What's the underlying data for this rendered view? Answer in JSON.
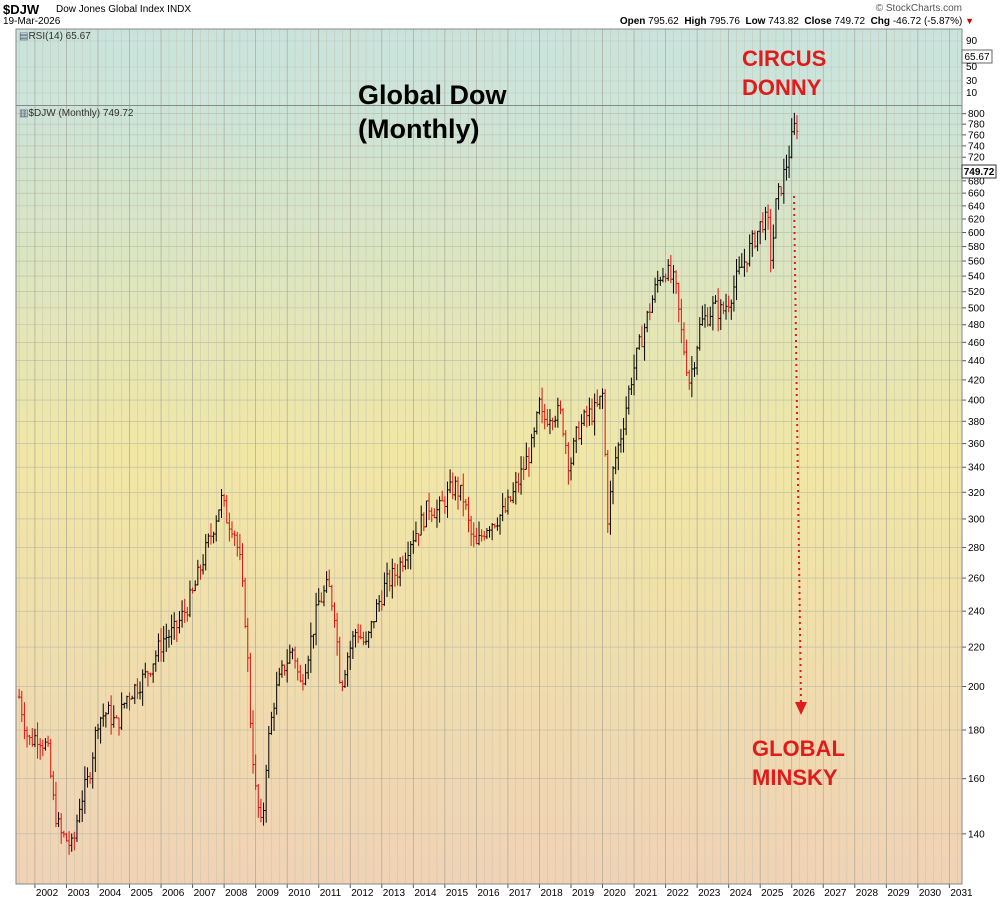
{
  "header": {
    "symbol": "$DJW",
    "name": "Dow Jones Global Index INDX",
    "date": "19-Mar-2026",
    "brand": "© StockCharts.com",
    "open_label": "Open",
    "open": "795.62",
    "high_label": "High",
    "high": "795.76",
    "low_label": "Low",
    "low": "743.82",
    "close_label": "Close",
    "close": "749.72",
    "chg_label": "Chg",
    "chg": "-46.72 (-5.87%)"
  },
  "rsi_panel": {
    "label": "RSI(14) 65.67",
    "value_tag": "65.67",
    "ticks": [
      "90",
      "50",
      "30",
      "10"
    ]
  },
  "price_panel": {
    "label": "$DJW (Monthly) 749.72",
    "value_tag": "749.72"
  },
  "overlays": {
    "title_line1": "Global Dow",
    "title_line2": "(Monthly)",
    "annotation_top_line1": "CIRCUS",
    "annotation_top_line2": "DONNY",
    "annotation_bottom_line1": "GLOBAL",
    "annotation_bottom_line2": "MINSKY"
  },
  "colors": {
    "up": "#000000",
    "down": "#dd1111",
    "annotation": "#e01b1b"
  },
  "chart_data": {
    "type": "line",
    "scale": "log",
    "ylim": [
      124,
      815
    ],
    "xlim": [
      2001.4,
      2031.4
    ],
    "yticks": [
      140,
      160,
      180,
      200,
      220,
      240,
      260,
      280,
      300,
      320,
      340,
      360,
      380,
      400,
      420,
      440,
      460,
      480,
      500,
      520,
      540,
      560,
      580,
      600,
      620,
      640,
      660,
      680,
      700,
      720,
      740,
      760,
      780,
      800
    ],
    "xticks": [
      2002,
      2003,
      2004,
      2005,
      2006,
      2007,
      2008,
      2009,
      2010,
      2011,
      2012,
      2013,
      2014,
      2015,
      2016,
      2017,
      2018,
      2019,
      2020,
      2021,
      2022,
      2023,
      2024,
      2025,
      2026,
      2027,
      2028,
      2029,
      2030,
      2031
    ],
    "series": [
      {
        "points": [
          [
            2001.5,
            195
          ],
          [
            2001.8,
            175
          ],
          [
            2002.1,
            178
          ],
          [
            2002.4,
            172
          ],
          [
            2002.6,
            150
          ],
          [
            2002.8,
            140
          ],
          [
            2003.0,
            138
          ],
          [
            2003.2,
            135
          ],
          [
            2003.4,
            150
          ],
          [
            2003.7,
            160
          ],
          [
            2004.0,
            185
          ],
          [
            2004.3,
            188
          ],
          [
            2004.6,
            182
          ],
          [
            2004.9,
            195
          ],
          [
            2005.2,
            200
          ],
          [
            2005.5,
            205
          ],
          [
            2005.8,
            215
          ],
          [
            2006.1,
            225
          ],
          [
            2006.4,
            228
          ],
          [
            2006.7,
            238
          ],
          [
            2007.0,
            250
          ],
          [
            2007.3,
            270
          ],
          [
            2007.6,
            290
          ],
          [
            2007.9,
            315
          ],
          [
            2008.1,
            300
          ],
          [
            2008.3,
            295
          ],
          [
            2008.5,
            270
          ],
          [
            2008.7,
            230
          ],
          [
            2008.85,
            180
          ],
          [
            2009.0,
            155
          ],
          [
            2009.2,
            140
          ],
          [
            2009.35,
            170
          ],
          [
            2009.6,
            195
          ],
          [
            2009.9,
            210
          ],
          [
            2010.2,
            220
          ],
          [
            2010.4,
            200
          ],
          [
            2010.7,
            220
          ],
          [
            2011.0,
            245
          ],
          [
            2011.3,
            255
          ],
          [
            2011.5,
            240
          ],
          [
            2011.7,
            200
          ],
          [
            2011.9,
            215
          ],
          [
            2012.2,
            230
          ],
          [
            2012.5,
            220
          ],
          [
            2012.8,
            240
          ],
          [
            2013.1,
            255
          ],
          [
            2013.5,
            265
          ],
          [
            2013.9,
            285
          ],
          [
            2014.2,
            295
          ],
          [
            2014.5,
            310
          ],
          [
            2014.8,
            305
          ],
          [
            2015.0,
            315
          ],
          [
            2015.3,
            325
          ],
          [
            2015.6,
            315
          ],
          [
            2015.8,
            290
          ],
          [
            2016.0,
            280
          ],
          [
            2016.3,
            295
          ],
          [
            2016.6,
            300
          ],
          [
            2016.9,
            305
          ],
          [
            2017.2,
            320
          ],
          [
            2017.5,
            340
          ],
          [
            2017.8,
            360
          ],
          [
            2018.0,
            395
          ],
          [
            2018.1,
            380
          ],
          [
            2018.4,
            390
          ],
          [
            2018.7,
            385
          ],
          [
            2018.95,
            340
          ],
          [
            2019.2,
            370
          ],
          [
            2019.5,
            385
          ],
          [
            2019.8,
            390
          ],
          [
            2020.0,
            405
          ],
          [
            2020.17,
            300
          ],
          [
            2020.35,
            340
          ],
          [
            2020.6,
            370
          ],
          [
            2020.9,
            420
          ],
          [
            2021.2,
            460
          ],
          [
            2021.5,
            500
          ],
          [
            2021.8,
            540
          ],
          [
            2022.0,
            550
          ],
          [
            2022.1,
            540
          ],
          [
            2022.3,
            530
          ],
          [
            2022.5,
            470
          ],
          [
            2022.75,
            420
          ],
          [
            2022.9,
            440
          ],
          [
            2023.1,
            480
          ],
          [
            2023.5,
            500
          ],
          [
            2023.8,
            495
          ],
          [
            2024.0,
            510
          ],
          [
            2024.3,
            540
          ],
          [
            2024.6,
            570
          ],
          [
            2024.9,
            600
          ],
          [
            2025.1,
            620
          ],
          [
            2025.25,
            610
          ],
          [
            2025.35,
            560
          ],
          [
            2025.5,
            640
          ],
          [
            2025.8,
            700
          ],
          [
            2026.0,
            750
          ],
          [
            2026.15,
            790
          ],
          [
            2026.22,
            749.72
          ]
        ]
      }
    ]
  }
}
